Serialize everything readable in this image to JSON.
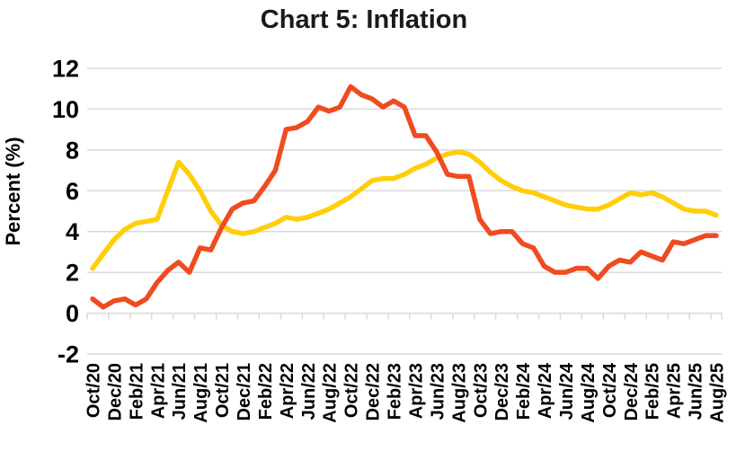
{
  "chart_data": {
    "type": "line",
    "title": "Chart 5: Inflation",
    "ylabel": "Percent (%)",
    "ylim": [
      -2,
      12
    ],
    "ytick_step": 2,
    "x_tick_interval": 2,
    "grid": true,
    "legend_position": "none",
    "categories": [
      "Oct/20",
      "Nov/20",
      "Dec/20",
      "Jan/21",
      "Feb/21",
      "Mar/21",
      "Apr/21",
      "May/21",
      "Jun/21",
      "Jul/21",
      "Aug/21",
      "Sep/21",
      "Oct/21",
      "Nov/21",
      "Dec/21",
      "Jan/22",
      "Feb/22",
      "Mar/22",
      "Apr/22",
      "May/22",
      "Jun/22",
      "Jul/22",
      "Aug/22",
      "Sep/22",
      "Oct/22",
      "Nov/22",
      "Dec/22",
      "Jan/23",
      "Feb/23",
      "Mar/23",
      "Apr/23",
      "May/23",
      "Jun/23",
      "Jul/23",
      "Aug/23",
      "Sep/23",
      "Oct/23",
      "Nov/23",
      "Dec/23",
      "Jan/24",
      "Feb/24",
      "Mar/24",
      "Apr/24",
      "May/24",
      "Jun/24",
      "Jul/24",
      "Aug/24",
      "Sep/24",
      "Oct/24",
      "Nov/24",
      "Dec/24",
      "Jan/25",
      "Feb/25",
      "Mar/25",
      "Apr/25",
      "May/25",
      "Jun/25",
      "Jul/25",
      "Aug/25"
    ],
    "x_tick_labels_shown": [
      "Oct/20",
      "Dec/20",
      "Feb/21",
      "Apr/21",
      "Jun/21",
      "Aug/21",
      "Oct/21",
      "Dec/21",
      "Feb/22",
      "Apr/22",
      "Jun/22",
      "Aug/22",
      "Oct/22",
      "Dec/22",
      "Feb/23",
      "Apr/23",
      "Jun/23",
      "Aug/23",
      "Oct/23",
      "Dec/23",
      "Feb/24",
      "Apr/24",
      "Jun/24",
      "Aug/24",
      "Oct/24",
      "Dec/24",
      "Feb/25",
      "Apr/25",
      "Jun/25",
      "Aug/25"
    ],
    "y_tick_labels": [
      "-2",
      "0",
      "2",
      "4",
      "6",
      "8",
      "10",
      "12"
    ],
    "series": [
      {
        "id": "yellow",
        "color": "#FFCE0A",
        "values": [
          2.2,
          2.9,
          3.6,
          4.1,
          4.4,
          4.5,
          4.6,
          6.0,
          7.4,
          6.8,
          6.0,
          5.0,
          4.3,
          4.0,
          3.9,
          4.0,
          4.2,
          4.4,
          4.7,
          4.6,
          4.7,
          4.9,
          5.1,
          5.4,
          5.7,
          6.1,
          6.5,
          6.6,
          6.6,
          6.8,
          7.1,
          7.3,
          7.6,
          7.8,
          7.9,
          7.8,
          7.4,
          6.9,
          6.5,
          6.2,
          6.0,
          5.9,
          5.7,
          5.5,
          5.3,
          5.2,
          5.1,
          5.1,
          5.3,
          5.6,
          5.9,
          5.8,
          5.9,
          5.7,
          5.4,
          5.1,
          5.0,
          5.0,
          4.8
        ]
      },
      {
        "id": "orange",
        "color": "#F04B20",
        "values": [
          0.7,
          0.3,
          0.6,
          0.7,
          0.4,
          0.7,
          1.5,
          2.1,
          2.5,
          2.0,
          3.2,
          3.1,
          4.2,
          5.1,
          5.4,
          5.5,
          6.2,
          7.0,
          9.0,
          9.1,
          9.4,
          10.1,
          9.9,
          10.1,
          11.1,
          10.7,
          10.5,
          10.1,
          10.4,
          10.1,
          8.7,
          8.7,
          7.9,
          6.8,
          6.7,
          6.7,
          4.6,
          3.9,
          4.0,
          4.0,
          3.4,
          3.2,
          2.3,
          2.0,
          2.0,
          2.2,
          2.2,
          1.7,
          2.3,
          2.6,
          2.5,
          3.0,
          2.8,
          2.6,
          3.5,
          3.4,
          3.6,
          3.8,
          3.8
        ]
      }
    ],
    "colors": {
      "grid": "#D9D9D9",
      "text": "#000000",
      "background": "#FFFFFF"
    }
  }
}
